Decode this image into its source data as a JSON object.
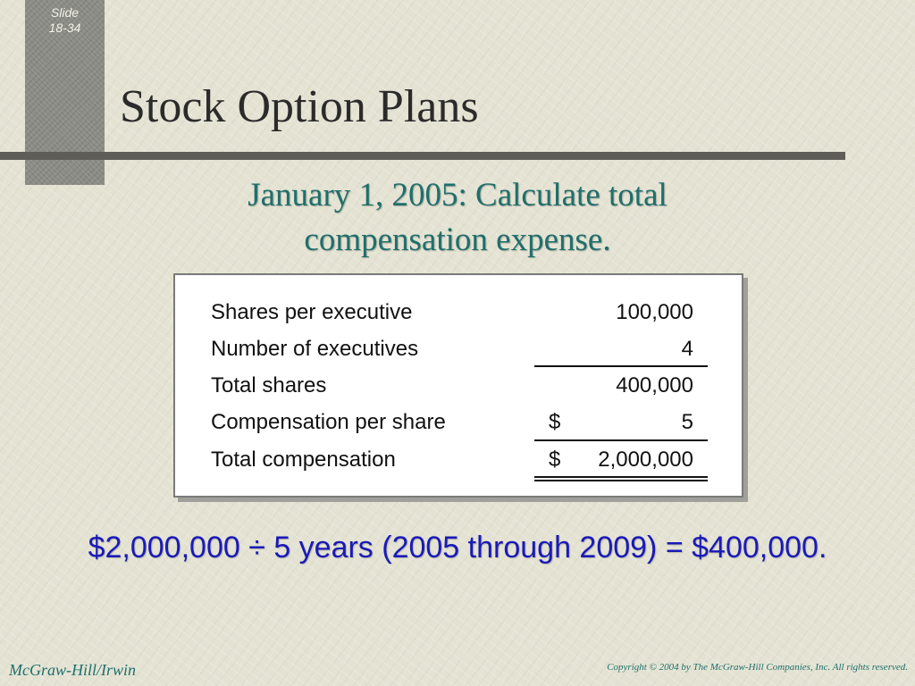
{
  "slide_number": {
    "label": "Slide",
    "number": "18-34"
  },
  "title": "Stock Option Plans",
  "subtitle": {
    "line1": "January 1, 2005: Calculate total",
    "line2": "compensation expense."
  },
  "calculation": {
    "rows": [
      {
        "label": "Shares per executive",
        "dollar": "",
        "value": "100,000"
      },
      {
        "label": "Number of executives",
        "dollar": "",
        "value": "4"
      },
      {
        "label": "Total shares",
        "dollar": "",
        "value": "400,000"
      },
      {
        "label": "Compensation per share",
        "dollar": "$",
        "value": "5"
      },
      {
        "label": "Total compensation",
        "dollar": "$",
        "value": "2,000,000"
      }
    ]
  },
  "summary": "$2,000,000 ÷ 5 years (2005 through 2009) = $400,000.",
  "footer": {
    "publisher": "McGraw-Hill/Irwin",
    "copyright": "Copyright © 2004 by The McGraw-Hill Companies, Inc. All rights reserved."
  },
  "colors": {
    "background": "#e4e3d3",
    "accent_teal": "#1f6f6c",
    "summary_blue": "#1a1ab8",
    "rule_gray": "#5e5d57"
  }
}
